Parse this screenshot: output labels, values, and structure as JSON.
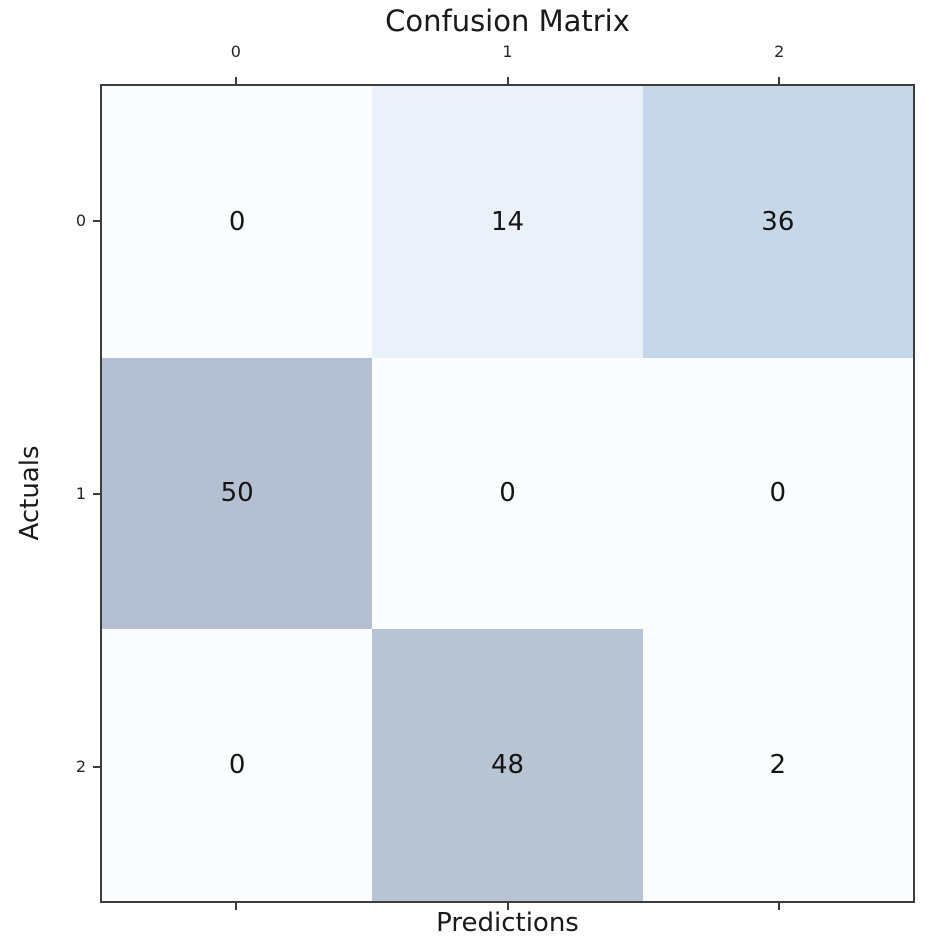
{
  "figure": {
    "title": "Confusion Matrix",
    "xlabel": "Predictions",
    "ylabel": "Actuals"
  },
  "chart_data": {
    "type": "heatmap",
    "title": "Confusion Matrix",
    "xlabel": "Predictions",
    "ylabel": "Actuals",
    "x_ticklabels": [
      "0",
      "1",
      "2"
    ],
    "y_ticklabels": [
      "0",
      "1",
      "2"
    ],
    "matrix": [
      [
        0,
        14,
        36
      ],
      [
        50,
        0,
        0
      ],
      [
        0,
        48,
        2
      ]
    ],
    "vmin": 0,
    "vmax": 50,
    "colormap": "Blues-light",
    "cell_colors": [
      [
        "#fbfcfe",
        "#eaf1f9",
        "#c5d7e9"
      ],
      [
        "#b4c0d2",
        "#fbfcfe",
        "#fbfcfe"
      ],
      [
        "#fbfcfe",
        "#b8c3d4",
        "#fafcfe"
      ]
    ],
    "grid": false,
    "legend": "none",
    "xtick_position": "top",
    "tick_marks": [
      "top",
      "bottom",
      "left"
    ]
  },
  "colors": {
    "background": "#ffffff",
    "spine": "#3d3d3d",
    "tick": "#3d3d3d",
    "text": "#1a1a1a"
  }
}
